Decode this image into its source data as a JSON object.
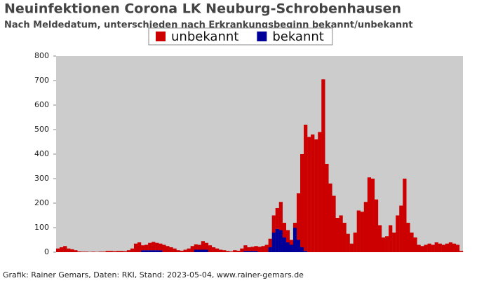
{
  "chart_data": {
    "type": "stacked_bar",
    "title": "Neuinfektionen Corona LK Neuburg-Schrobenhausen",
    "subtitle": "Nach Meldedatum, unterschieden nach Erkrankungsbeginn bekannt/unbekannt",
    "footer": "Grafik: Rainer Gemars, Daten: RKI, Stand: 2023-05-04, www.rainer-gemars.de",
    "categories": [
      null,
      null,
      null,
      null,
      null,
      null,
      null,
      null,
      null,
      null,
      null,
      null,
      null,
      null,
      null,
      null,
      null,
      null,
      null,
      null,
      null,
      null,
      null,
      null,
      null,
      null,
      null,
      null,
      null,
      null,
      null,
      null,
      null,
      null,
      null,
      null,
      null,
      null,
      null,
      null,
      null,
      null,
      null,
      null,
      null,
      null,
      null,
      null,
      null,
      null,
      null,
      null,
      null,
      null,
      null,
      null,
      null,
      null,
      null,
      null,
      null,
      null,
      null,
      null,
      null,
      null,
      null,
      null,
      null,
      null,
      null,
      null,
      null,
      null,
      null,
      null,
      null,
      null,
      null,
      null,
      null,
      null,
      null,
      null,
      null,
      null,
      null,
      null,
      null,
      null,
      null,
      null,
      null,
      null,
      null,
      null,
      null,
      null,
      null,
      null,
      null,
      null,
      null,
      null,
      null,
      null,
      null,
      null,
      null,
      null,
      null,
      null,
      null,
      null,
      null
    ],
    "series": [
      {
        "name": "bekannt",
        "color": "#000099",
        "values": [
          0,
          0,
          0,
          0,
          0,
          0,
          0,
          0,
          0,
          0,
          0,
          0,
          0,
          0,
          0,
          0,
          0,
          0,
          0,
          0,
          0,
          0,
          0,
          0,
          8,
          8,
          8,
          8,
          8,
          8,
          0,
          0,
          0,
          0,
          0,
          0,
          0,
          0,
          0,
          10,
          10,
          10,
          10,
          0,
          0,
          0,
          0,
          0,
          0,
          0,
          0,
          0,
          0,
          5,
          5,
          5,
          5,
          0,
          0,
          0,
          20,
          80,
          95,
          90,
          60,
          40,
          30,
          100,
          50,
          20,
          5,
          0,
          0,
          0,
          0,
          0,
          0,
          0,
          0,
          0,
          0,
          0,
          0,
          0,
          0,
          0,
          0,
          0,
          0,
          0,
          0,
          0,
          0,
          0,
          0,
          0,
          0,
          0,
          0,
          0,
          0,
          0,
          0,
          0,
          0,
          0,
          0,
          0,
          0,
          0,
          0,
          0,
          0,
          0,
          0
        ]
      },
      {
        "name": "unbekannt",
        "color": "#cc0000",
        "values": [
          15,
          20,
          25,
          15,
          12,
          8,
          3,
          2,
          2,
          1,
          2,
          1,
          2,
          2,
          5,
          5,
          4,
          5,
          5,
          4,
          8,
          15,
          35,
          40,
          20,
          22,
          30,
          34,
          30,
          27,
          30,
          25,
          20,
          15,
          8,
          6,
          10,
          15,
          25,
          22,
          20,
          35,
          28,
          28,
          20,
          15,
          10,
          8,
          5,
          3,
          8,
          6,
          15,
          23,
          15,
          17,
          20,
          22,
          25,
          30,
          35,
          70,
          85,
          115,
          60,
          50,
          20,
          20,
          190,
          380,
          515,
          470,
          480,
          460,
          490,
          705,
          360,
          280,
          230,
          140,
          150,
          120,
          75,
          35,
          80,
          170,
          165,
          205,
          305,
          300,
          215,
          110,
          60,
          65,
          110,
          80,
          150,
          190,
          300,
          120,
          80,
          60,
          30,
          25,
          30,
          35,
          30,
          40,
          35,
          30,
          35,
          40,
          35,
          30,
          5
        ]
      }
    ],
    "legend_order": [
      1,
      0
    ],
    "ylim": [
      0,
      800
    ],
    "yticks": [
      0,
      100,
      200,
      300,
      400,
      500,
      600,
      700,
      800
    ],
    "background": "#cccccc"
  }
}
